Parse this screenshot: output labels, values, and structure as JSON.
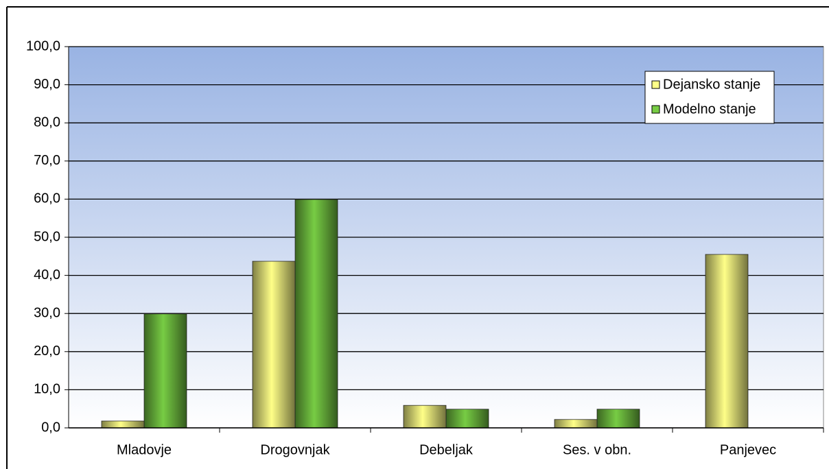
{
  "chart_data": {
    "type": "bar",
    "categories": [
      "Mladovje",
      "Drogovnjak",
      "Debeljak",
      "Ses. v obn.",
      "Panjevec"
    ],
    "series": [
      {
        "name": "Dejansko stanje",
        "color": "#ffff88",
        "values": [
          1.8,
          43.7,
          5.9,
          2.2,
          45.5
        ]
      },
      {
        "name": "Modelno stanje",
        "color": "#77cc44",
        "values": [
          29.9,
          59.9,
          4.9,
          4.9,
          0
        ]
      }
    ],
    "ylim": [
      0,
      100
    ],
    "yticks": [
      {
        "value": 0,
        "label": "0,0"
      },
      {
        "value": 10,
        "label": "10,0"
      },
      {
        "value": 20,
        "label": "20,0"
      },
      {
        "value": 30,
        "label": "30,0"
      },
      {
        "value": 40,
        "label": "40,0"
      },
      {
        "value": 50,
        "label": "50,0"
      },
      {
        "value": 60,
        "label": "60,0"
      },
      {
        "value": 70,
        "label": "70,0"
      },
      {
        "value": 80,
        "label": "80,0"
      },
      {
        "value": 90,
        "label": "90,0"
      },
      {
        "value": 100,
        "label": "100,0"
      }
    ],
    "grid": true,
    "legend": "top-right"
  }
}
